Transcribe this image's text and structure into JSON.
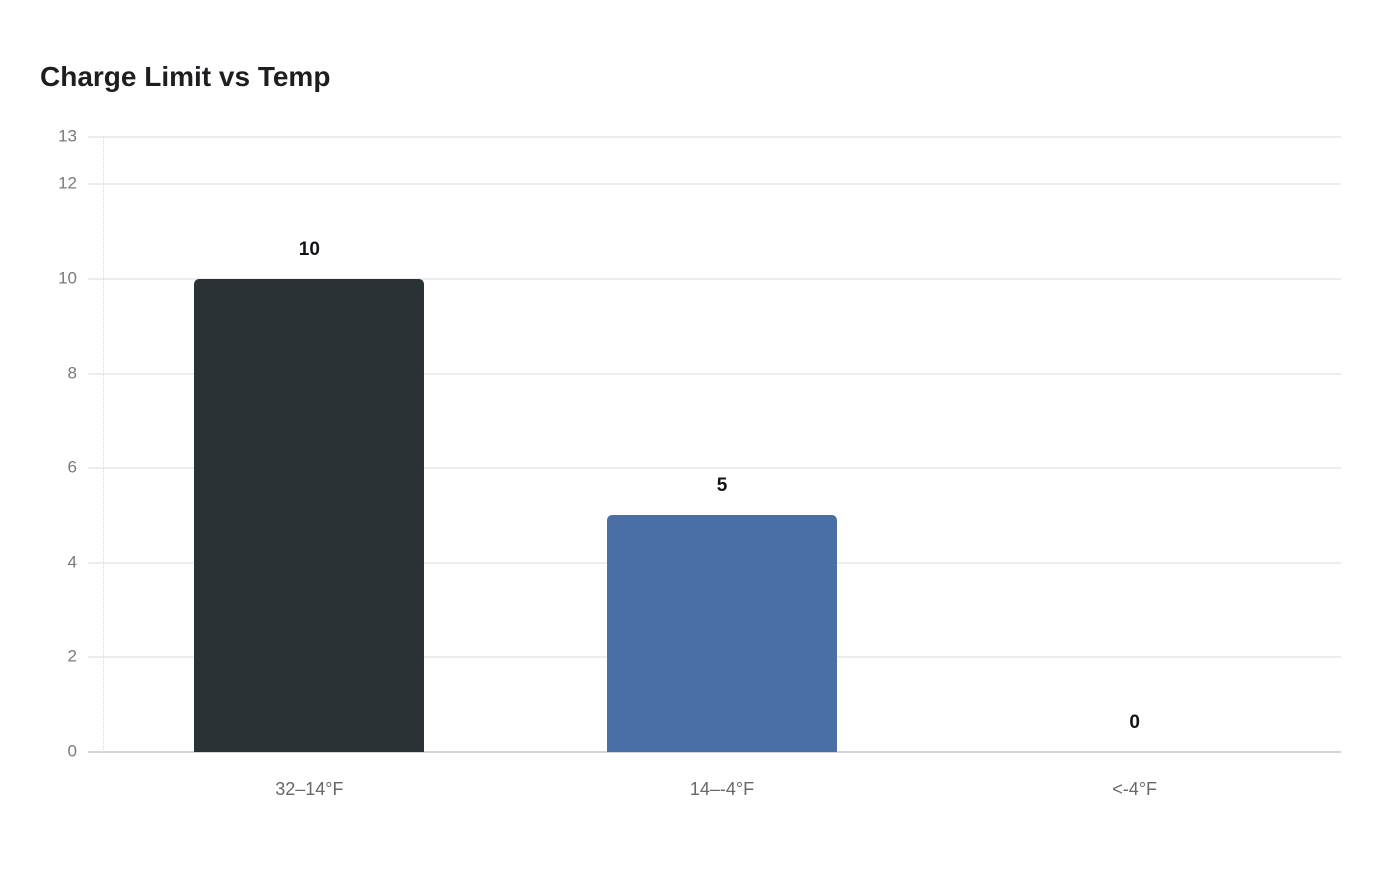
{
  "page": {
    "title": "Charge Limit vs Temp"
  },
  "chart_data": {
    "type": "bar",
    "title": "Charge Limit vs Temp",
    "categories": [
      "32–14°F",
      "14–-4°F",
      "<-4°F"
    ],
    "values": [
      10,
      5,
      0
    ],
    "value_labels": [
      "10",
      "5",
      "0"
    ],
    "yticks": [
      0,
      2,
      4,
      6,
      8,
      10,
      12,
      13
    ],
    "ylim": [
      0,
      13
    ],
    "xlabel": "",
    "ylabel": "",
    "grid": true,
    "legend": false,
    "bar_colors": [
      "#2b3236",
      "#4a6fa7",
      null
    ],
    "colors": {
      "grid": "#ededed",
      "baseline": "#d2d4d6",
      "axis_dotted": "#d9d9d9",
      "tick_text": "#77797c",
      "category_text": "#65686c",
      "value_text": "#121417",
      "title_text": "#1c1e21",
      "background": "#ffffff"
    }
  }
}
